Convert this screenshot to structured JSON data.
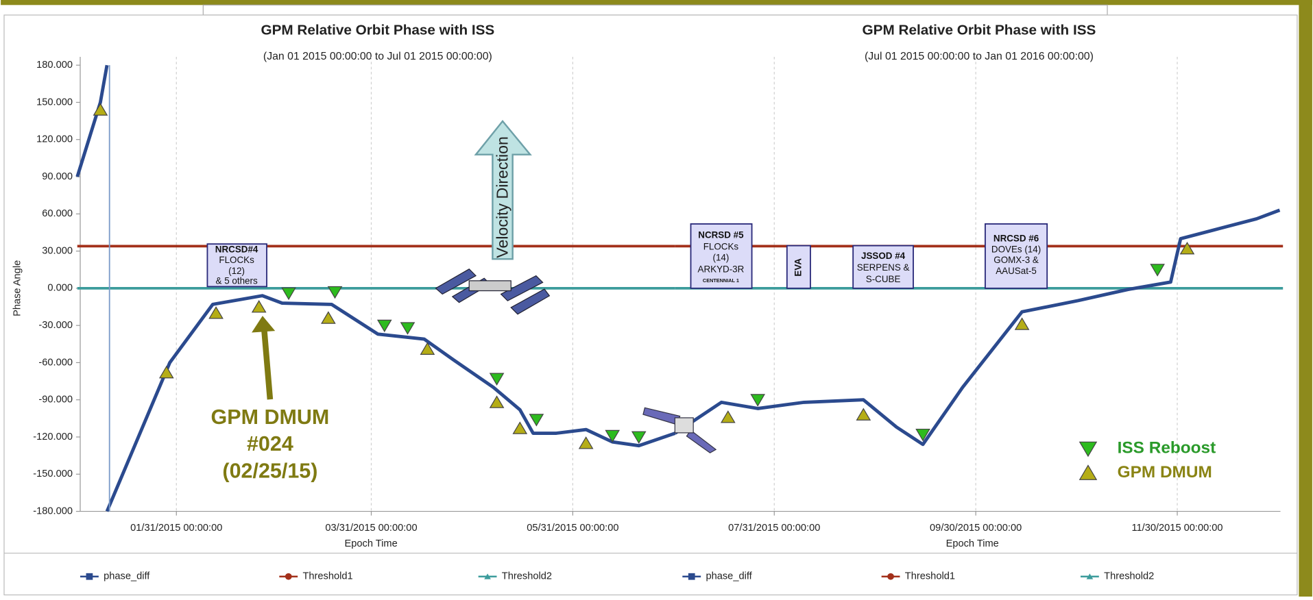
{
  "chart_data": [
    {
      "type": "line",
      "title": "GPM Relative Orbit Phase with ISS",
      "subtitle": "(Jan 01 2015 00:00:00 to Jul 01 2015 00:00:00)",
      "xlabel": "Epoch Time",
      "ylabel": "Phase Angle",
      "xlim": [
        "2015-01-01",
        "2015-07-01"
      ],
      "ylim": [
        -180,
        180
      ],
      "grid": "x",
      "xticks": [
        {
          "value": "2015-01-31",
          "label": "01/31/2015 00:00:00"
        },
        {
          "value": "2015-03-31",
          "label": "03/31/2015 00:00:00"
        },
        {
          "value": "2015-05-31",
          "label": "05/31/2015 00:00:00"
        }
      ],
      "yticks": [
        {
          "value": 180,
          "label": "180.000"
        },
        {
          "value": 150,
          "label": "150.000"
        },
        {
          "value": 120,
          "label": "120.000"
        },
        {
          "value": 90,
          "label": "90.000"
        },
        {
          "value": 60,
          "label": "60.000"
        },
        {
          "value": 30,
          "label": "30.000"
        },
        {
          "value": 0,
          "label": "0.000"
        },
        {
          "value": -30,
          "label": "-30.000"
        },
        {
          "value": -60,
          "label": "-60.000"
        },
        {
          "value": -90,
          "label": "-90.000"
        },
        {
          "value": -120,
          "label": "-120.000"
        },
        {
          "value": -150,
          "label": "-150.000"
        },
        {
          "value": -180,
          "label": "-180.000"
        }
      ],
      "series": [
        {
          "name": "phase_diff",
          "color": "#2b4a8e",
          "marker": "square",
          "x": [
            "2015-01-01",
            "2015-01-08",
            "2015-01-10",
            "2015-01-10",
            "2015-01-10",
            "2015-01-29",
            "2015-02-11",
            "2015-02-26",
            "2015-03-04",
            "2015-03-19",
            "2015-04-02",
            "2015-04-16",
            "2015-04-25",
            "2015-05-07",
            "2015-05-15",
            "2015-05-19",
            "2015-05-26",
            "2015-06-04",
            "2015-06-12",
            "2015-06-20",
            "2015-07-01"
          ],
          "values": [
            90,
            150,
            180,
            null,
            -180,
            -60,
            -13,
            -6,
            -12,
            -13,
            -37,
            -41,
            -58,
            -80,
            -98,
            -117,
            -117,
            -114,
            -124,
            -127,
            -117
          ]
        },
        {
          "name": "Threshold1",
          "color": "#a3301a",
          "marker": "circle",
          "x": [
            "2015-01-01",
            "2015-07-01"
          ],
          "values": [
            34,
            34
          ]
        },
        {
          "name": "Threshold2",
          "color": "#3c9c9c",
          "marker": "triangle",
          "x": [
            "2015-01-01",
            "2015-07-01"
          ],
          "values": [
            0,
            0
          ]
        }
      ]
    },
    {
      "type": "line",
      "title": "GPM Relative Orbit Phase with ISS",
      "subtitle": "(Jul 01 2015 00:00:00 to Jan 01 2016 00:00:00)",
      "xlabel": "Epoch Time",
      "xlim": [
        "2015-07-01",
        "2016-01-01"
      ],
      "ylim": [
        -180,
        180
      ],
      "grid": "x",
      "xticks": [
        {
          "value": "2015-07-31",
          "label": "07/31/2015 00:00:00"
        },
        {
          "value": "2015-09-30",
          "label": "09/30/2015 00:00:00"
        },
        {
          "value": "2015-11-30",
          "label": "11/30/2015 00:00:00"
        }
      ],
      "series": [
        {
          "name": "phase_diff",
          "color": "#2b4a8e",
          "marker": "square",
          "x": [
            "2015-07-01",
            "2015-07-15",
            "2015-07-26",
            "2015-08-09",
            "2015-08-27",
            "2015-09-06",
            "2015-09-14",
            "2015-09-26",
            "2015-10-14",
            "2015-10-31",
            "2015-11-15",
            "2015-11-28",
            "2015-12-01",
            "2015-12-11",
            "2015-12-24",
            "2015-12-31"
          ],
          "values": [
            -117,
            -92,
            -97,
            -92,
            -90,
            -112,
            -126,
            -80,
            -19,
            -10,
            -1,
            5,
            40,
            47,
            56,
            63
          ]
        },
        {
          "name": "Threshold1",
          "color": "#a3301a",
          "marker": "circle",
          "x": [
            "2015-07-01",
            "2016-01-01"
          ],
          "values": [
            34,
            34
          ]
        },
        {
          "name": "Threshold2",
          "color": "#3c9c9c",
          "marker": "triangle",
          "x": [
            "2015-07-01",
            "2016-01-01"
          ],
          "values": [
            0,
            0
          ]
        }
      ]
    }
  ],
  "markers": {
    "series": [
      {
        "name": "ISS Reboost",
        "color": "#2dbb1e",
        "label_color": "#2a9a2a",
        "marker": "triangle-down",
        "x": [
          "2015-03-06",
          "2015-03-20",
          "2015-04-04",
          "2015-04-11",
          "2015-05-08",
          "2015-05-20",
          "2015-06-12",
          "2015-06-20",
          "2015-07-26",
          "2015-09-14",
          "2015-11-24"
        ],
        "values": [
          -4,
          -3,
          -30,
          -32,
          -73,
          -106,
          -119,
          -120,
          -90,
          -118,
          15
        ]
      },
      {
        "name": "GPM DMUM",
        "color": "#b5ad16",
        "label_color": "#8a8414",
        "marker": "triangle-up",
        "x": [
          "2015-01-08",
          "2015-01-28",
          "2015-02-12",
          "2015-02-25",
          "2015-03-18",
          "2015-04-17",
          "2015-05-08",
          "2015-05-15",
          "2015-06-04",
          "2015-07-17",
          "2015-08-27",
          "2015-10-14",
          "2015-12-03"
        ],
        "values": [
          144,
          -68,
          -20,
          -15,
          -24,
          -49,
          -92,
          -113,
          -125,
          -104,
          -102,
          -29,
          32
        ]
      }
    ]
  },
  "annotations": {
    "payloads": [
      {
        "lines": [
          "NRCSD#4",
          "FLOCKs",
          "(12)",
          "& 5 others"
        ]
      },
      {
        "lines": [
          "NCRSD #5",
          "FLOCKs",
          "(14)",
          "ARKYD-3R",
          "CENTENNIAL 1"
        ]
      },
      {
        "lines": [
          "EVA"
        ]
      },
      {
        "lines": [
          "JSSOD #4",
          "SERPENS &",
          "S-CUBE"
        ]
      },
      {
        "lines": [
          "NRCSD #6",
          "DOVEs (14)",
          "GOMX-3 &",
          "AAUSat-5"
        ]
      }
    ],
    "velocity": "Velocity Direction",
    "callout": [
      "GPM DMUM",
      "#024",
      "(02/25/15)"
    ]
  }
}
